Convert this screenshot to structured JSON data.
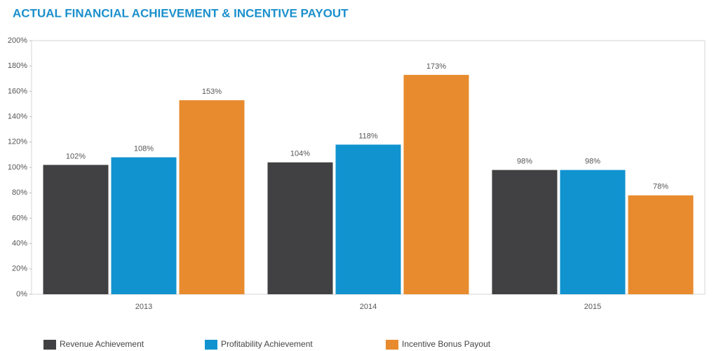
{
  "chart_data": {
    "type": "bar",
    "title": "ACTUAL FINANCIAL ACHIEVEMENT & INCENTIVE PAYOUT",
    "categories": [
      "2013",
      "2014",
      "2015"
    ],
    "series": [
      {
        "name": "Revenue Achievement",
        "color": "#414042",
        "values": [
          102,
          104,
          98
        ],
        "value_labels": [
          "102%",
          "104%",
          "98%"
        ]
      },
      {
        "name": "Profitability Achievement",
        "color": "#1193d0",
        "values": [
          108,
          118,
          98
        ],
        "value_labels": [
          "108%",
          "118%",
          "98%"
        ]
      },
      {
        "name": "Incentive Bonus Payout",
        "color": "#e88b2e",
        "values": [
          153,
          173,
          78
        ],
        "value_labels": [
          "153%",
          "173%",
          "78%"
        ]
      }
    ],
    "ylim": [
      0,
      200
    ],
    "yticks": [
      {
        "value": 0,
        "label": "0%"
      },
      {
        "value": 20,
        "label": "20%"
      },
      {
        "value": 40,
        "label": "40%"
      },
      {
        "value": 60,
        "label": "60%"
      },
      {
        "value": 80,
        "label": "80%"
      },
      {
        "value": 100,
        "label": "100%"
      },
      {
        "value": 120,
        "label": "120%"
      },
      {
        "value": 140,
        "label": "140%"
      },
      {
        "value": 160,
        "label": "160%"
      },
      {
        "value": 180,
        "label": "180%"
      },
      {
        "value": 200,
        "label": "200%"
      }
    ],
    "legend": "bottom-left"
  }
}
